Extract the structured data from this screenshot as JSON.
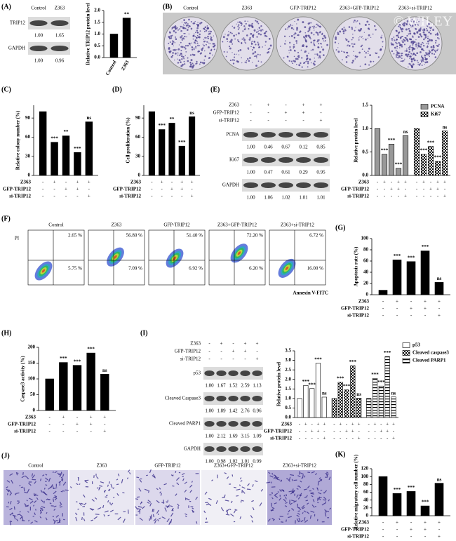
{
  "panel_labels": [
    "(A)",
    "(B)",
    "(C)",
    "(D)",
    "(E)",
    "(F)",
    "(G)",
    "(H)",
    "(I)",
    "(J)",
    "(K)"
  ],
  "blot_a": {
    "lanes": [
      "Control",
      "Z363"
    ],
    "bands": [
      {
        "name": "TRIP12",
        "values": [
          "1.00",
          "1.65"
        ]
      },
      {
        "name": "GAPDH",
        "values": [
          "1.00",
          "0.96"
        ]
      }
    ]
  },
  "colony_b": {
    "labels": [
      "Control",
      "Z363",
      "GFP-TRIP12",
      "Z363+GFP-TRIP12",
      "Z363+si-TRIP12"
    ],
    "watermark": "© WILEY"
  },
  "blot_e": {
    "treatments": [
      {
        "name": "Z363",
        "signs": [
          "-",
          "+",
          "-",
          "+",
          "+"
        ]
      },
      {
        "name": "GFP-TRIP12",
        "signs": [
          "-",
          "-",
          "+",
          "+",
          "-"
        ]
      },
      {
        "name": "si-TRIP12",
        "signs": [
          "-",
          "-",
          "-",
          "-",
          "+"
        ]
      }
    ],
    "bands": [
      {
        "name": "PCNA",
        "values": [
          "1.00",
          "0.46",
          "0.67",
          "0.12",
          "0.85"
        ]
      },
      {
        "name": "Ki67",
        "values": [
          "1.00",
          "0.47",
          "0.61",
          "0.29",
          "0.95"
        ]
      },
      {
        "name": "GAPDH",
        "values": [
          "1.00",
          "1.06",
          "1.02",
          "1.01",
          "1.01"
        ]
      }
    ]
  },
  "flow_f": {
    "y_label": "PI",
    "x_label": "Annexin V-FITC",
    "plots": [
      {
        "title": "Control",
        "upper_right": "2.65 %",
        "lower_right": "5.75 %"
      },
      {
        "title": "Z363",
        "upper_right": "56.80 %",
        "lower_right": "7.09 %"
      },
      {
        "title": "GFP-TRIP12",
        "upper_right": "51.40 %",
        "lower_right": "6.92 %"
      },
      {
        "title": "Z363+GFP-TRIP12",
        "upper_right": "72.20 %",
        "lower_right": "6.20 %"
      },
      {
        "title": "Z363+si-TRIP12",
        "upper_right": "6.72 %",
        "lower_right": "16.00 %"
      }
    ]
  },
  "blot_i": {
    "treatments": [
      {
        "name": "Z363",
        "signs": [
          "-",
          "+",
          "-",
          "+",
          "+"
        ]
      },
      {
        "name": "GFP-TRIP12",
        "signs": [
          "-",
          "-",
          "+",
          "+",
          "-"
        ]
      },
      {
        "name": "si-TRIP12",
        "signs": [
          "-",
          "-",
          "-",
          "-",
          "+"
        ]
      }
    ],
    "bands": [
      {
        "name": "p53",
        "values": [
          "1.00",
          "1.67",
          "1.52",
          "2.59",
          "1.13"
        ]
      },
      {
        "name": "Cleaved Caspase3",
        "values": [
          "1.00",
          "1.89",
          "1.42",
          "2.76",
          "0.96"
        ]
      },
      {
        "name": "Cleaved PARP1",
        "values": [
          "1.00",
          "2.12",
          "1.69",
          "3.15",
          "1.09"
        ]
      },
      {
        "name": "GAPDH",
        "values": [
          "1.00",
          "0.98",
          "1.02",
          "1.01",
          "0.99"
        ]
      }
    ]
  },
  "transwell_j": {
    "labels": [
      "Control",
      "Z363",
      "GFP-TRIP12",
      "Z363+GFP-TRIP12",
      "Z363+si-TRIP12"
    ]
  },
  "chart_data": [
    {
      "type": "bar",
      "y_label": "Relative TRIP12 protein level",
      "categories": [
        "Control",
        "Z363"
      ],
      "values": [
        1.0,
        1.68
      ],
      "color": "#000000",
      "ylim": [
        0,
        2
      ],
      "yticks": [
        {
          "value": 0,
          "label": "0.0"
        },
        {
          "value": 0.5,
          "label": "0.5"
        },
        {
          "value": 1,
          "label": "1.0"
        },
        {
          "value": 1.5,
          "label": "1.5"
        },
        {
          "value": 2,
          "label": "2.0"
        }
      ],
      "annotations": [
        null,
        "**"
      ]
    },
    {
      "type": "bar",
      "y_label": "Relative colony number (%)",
      "values": [
        100,
        52,
        62,
        36,
        84
      ],
      "color": "#000000",
      "ylim": [
        0,
        110
      ],
      "yticks": [
        0,
        30,
        60,
        90
      ],
      "annotations": [
        null,
        "***",
        "**",
        "***",
        "ns"
      ],
      "treatments": [
        {
          "name": "Z363",
          "signs": [
            "-",
            "+",
            "-",
            "+",
            "+"
          ]
        },
        {
          "name": "GFP-TRIP12",
          "signs": [
            "-",
            "-",
            "+",
            "+",
            "-"
          ]
        },
        {
          "name": "si-TRIP12",
          "signs": [
            "-",
            "-",
            "-",
            "-",
            "+"
          ]
        }
      ]
    },
    {
      "type": "bar",
      "y_label": "Cell proliferation (%)",
      "values": [
        100,
        72,
        82,
        46,
        92
      ],
      "color": "#000000",
      "ylim": [
        0,
        110
      ],
      "yticks": [
        0,
        30,
        60,
        90
      ],
      "annotations": [
        null,
        "***",
        "**",
        "***",
        "ns"
      ],
      "treatments": [
        {
          "name": "Z363",
          "signs": [
            "-",
            "+",
            "-",
            "+",
            "+"
          ]
        },
        {
          "name": "GFP-TRIP12",
          "signs": [
            "-",
            "-",
            "+",
            "+",
            "-"
          ]
        },
        {
          "name": "si-TRIP12",
          "signs": [
            "-",
            "-",
            "-",
            "-",
            "+"
          ]
        }
      ]
    },
    {
      "type": "bar",
      "y_label": "Relative protein level",
      "legend": "upper right",
      "series": [
        {
          "name": "PCNA",
          "color": "#999999",
          "values": [
            1.0,
            0.45,
            0.67,
            0.15,
            0.85
          ]
        },
        {
          "name": "Ki67",
          "color": "#ffffff",
          "pattern": "checker",
          "values": [
            1.0,
            0.45,
            0.62,
            0.3,
            0.95
          ]
        }
      ],
      "ylim": [
        0,
        1.5
      ],
      "yticks": [
        {
          "value": 0,
          "label": "0.0"
        },
        {
          "value": 0.5,
          "label": "0.5"
        },
        {
          "value": 1,
          "label": "1.0"
        },
        {
          "value": 1.5,
          "label": "1.5"
        }
      ],
      "annotations": [
        null,
        "***",
        "***",
        "***",
        "ns",
        null,
        "***",
        "***",
        "***",
        "ns"
      ],
      "treatments": [
        {
          "name": "Z363",
          "signs": [
            "-",
            "+",
            "-",
            "+",
            "+",
            "-",
            "+",
            "-",
            "+",
            "+"
          ]
        },
        {
          "name": "GFP-TRIP12",
          "signs": [
            "-",
            "-",
            "+",
            "+",
            "-",
            "-",
            "-",
            "+",
            "+",
            "-"
          ]
        },
        {
          "name": "si-TRIP12",
          "signs": [
            "-",
            "-",
            "-",
            "-",
            "+",
            "-",
            "-",
            "-",
            "-",
            "+"
          ]
        }
      ]
    },
    {
      "type": "bar",
      "y_label": "Apoptosis rate (%)",
      "values": [
        8,
        62,
        59,
        78,
        22
      ],
      "color": "#000000",
      "ylim": [
        0,
        100
      ],
      "yticks": [
        0,
        20,
        40,
        60,
        80,
        100
      ],
      "annotations": [
        null,
        "***",
        "***",
        "***",
        "ns"
      ],
      "treatments": [
        {
          "name": "Z363",
          "signs": [
            "-",
            "+",
            "-",
            "+",
            "+"
          ]
        },
        {
          "name": "GFP-TRIP12",
          "signs": [
            "-",
            "-",
            "+",
            "+",
            "-"
          ]
        },
        {
          "name": "si-TRIP12",
          "signs": [
            "-",
            "-",
            "-",
            "-",
            "+"
          ]
        }
      ]
    },
    {
      "type": "bar",
      "y_label": "Caspase3 activity (%)",
      "values": [
        100,
        152,
        143,
        182,
        115
      ],
      "color": "#000000",
      "ylim": [
        0,
        200
      ],
      "yticks": [
        0,
        50,
        100,
        150,
        200
      ],
      "annotations": [
        null,
        "***",
        "***",
        "***",
        "ns"
      ],
      "treatments": [
        {
          "name": "Z363",
          "signs": [
            "-",
            "+",
            "-",
            "+",
            "+"
          ]
        },
        {
          "name": "GFP-TRIP12",
          "signs": [
            "-",
            "-",
            "+",
            "+",
            "-"
          ]
        },
        {
          "name": "si-TRIP12",
          "signs": [
            "-",
            "-",
            "-",
            "-",
            "+"
          ]
        }
      ]
    },
    {
      "type": "bar",
      "y_label": "Relative protein level",
      "legend": "right",
      "series": [
        {
          "name": "p53",
          "color": "#ffffff",
          "values": [
            1.0,
            1.68,
            1.52,
            2.85,
            1.07
          ]
        },
        {
          "name": "Cleaved caspase3",
          "color": "#ffffff",
          "pattern": "checker",
          "values": [
            1.0,
            1.85,
            1.45,
            2.72,
            1.02
          ]
        },
        {
          "name": "Cleaved PARP1",
          "color": "#ffffff",
          "pattern": "hstripe",
          "values": [
            1.0,
            2.05,
            1.65,
            3.2,
            1.08
          ]
        }
      ],
      "ylim": [
        0,
        3.5
      ],
      "yticks": [
        {
          "value": 0,
          "label": "0.0"
        },
        {
          "value": 0.5,
          "label": "0.5"
        },
        {
          "value": 1,
          "label": "1.0"
        },
        {
          "value": 1.5,
          "label": "1.5"
        },
        {
          "value": 2,
          "label": "2.0"
        },
        {
          "value": 2.5,
          "label": "2.5"
        },
        {
          "value": 3,
          "label": "3.0"
        },
        {
          "value": 3.5,
          "label": "3.5"
        }
      ],
      "annotations": [
        null,
        "***",
        "***",
        "***",
        "ns",
        null,
        "***",
        "***",
        "***",
        "ns",
        null,
        "***",
        "***",
        "***",
        "ns"
      ],
      "treatments": [
        {
          "name": "Z363",
          "signs": [
            "-",
            "+",
            "-",
            "+",
            "+",
            "-",
            "+",
            "-",
            "+",
            "+",
            "-",
            "+",
            "-",
            "+",
            "+"
          ]
        },
        {
          "name": "GFP-TRIP12",
          "signs": [
            "-",
            "-",
            "+",
            "+",
            "-",
            "-",
            "-",
            "+",
            "+",
            "-",
            "-",
            "-",
            "+",
            "+",
            "-"
          ]
        },
        {
          "name": "si-TRIP12",
          "signs": [
            "-",
            "-",
            "-",
            "-",
            "+",
            "-",
            "-",
            "-",
            "-",
            "+",
            "-",
            "-",
            "-",
            "-",
            "+"
          ]
        }
      ]
    },
    {
      "type": "bar",
      "y_label": "Relative migratory cell number (%)",
      "values": [
        100,
        57,
        62,
        25,
        83
      ],
      "color": "#000000",
      "ylim": [
        0,
        120
      ],
      "yticks": [
        0,
        20,
        40,
        60,
        80,
        100,
        120
      ],
      "annotations": [
        null,
        "***",
        "***",
        "***",
        "ns"
      ],
      "treatments": [
        {
          "name": "Z363",
          "signs": [
            "-",
            "+",
            "-",
            "+",
            "+"
          ]
        },
        {
          "name": "GFP-TRIP12",
          "signs": [
            "-",
            "-",
            "+",
            "+",
            "-"
          ]
        },
        {
          "name": "si-TRIP12",
          "signs": [
            "-",
            "-",
            "-",
            "-",
            "+"
          ]
        }
      ]
    }
  ]
}
